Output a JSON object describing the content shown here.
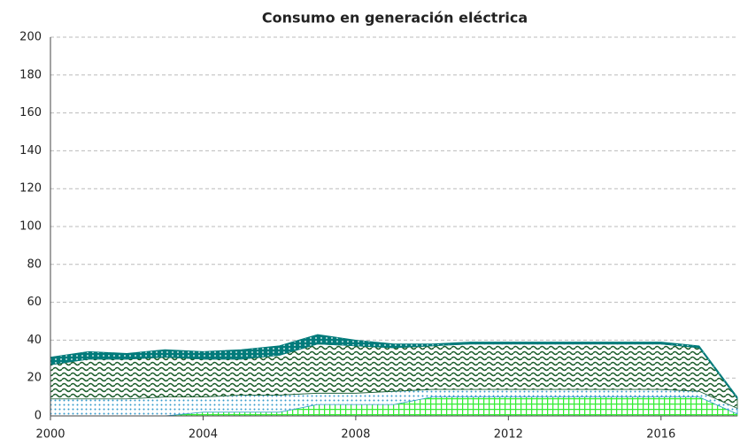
{
  "chart_data": {
    "type": "area",
    "stacked": true,
    "title": "Consumo en generación eléctrica",
    "x": [
      2000,
      2001,
      2002,
      2003,
      2004,
      2005,
      2006,
      2007,
      2008,
      2009,
      2010,
      2011,
      2012,
      2013,
      2014,
      2015,
      2016,
      2017,
      2018
    ],
    "series": [
      {
        "color": "#33ee33",
        "values": [
          0,
          0,
          0,
          0,
          2,
          2,
          2,
          6,
          6,
          6,
          10,
          10,
          10,
          10,
          10,
          10,
          10,
          10,
          1
        ]
      },
      {
        "color": "#3399cc",
        "values": [
          9,
          9,
          9,
          10,
          8,
          9,
          9,
          6,
          6,
          7,
          4,
          4,
          4,
          4,
          4,
          4,
          4,
          3,
          3
        ]
      },
      {
        "color": "#1a5c2a",
        "values": [
          18,
          21,
          21,
          21,
          20,
          19,
          21,
          26,
          25,
          23,
          23,
          24,
          24,
          24,
          24,
          24,
          24,
          23,
          5
        ]
      },
      {
        "color": "#007b7b",
        "values": [
          4,
          4,
          3,
          4,
          4,
          5,
          5,
          5,
          3,
          2,
          1,
          1,
          1,
          1,
          1,
          1,
          1,
          1,
          1
        ]
      }
    ],
    "xlim": [
      2000,
      2018
    ],
    "xticks": [
      2000,
      2004,
      2008,
      2012,
      2016
    ],
    "ylim": [
      0,
      200
    ],
    "yticks": [
      0,
      20,
      40,
      60,
      80,
      100,
      120,
      140,
      160,
      180,
      200
    ],
    "grid": true
  }
}
